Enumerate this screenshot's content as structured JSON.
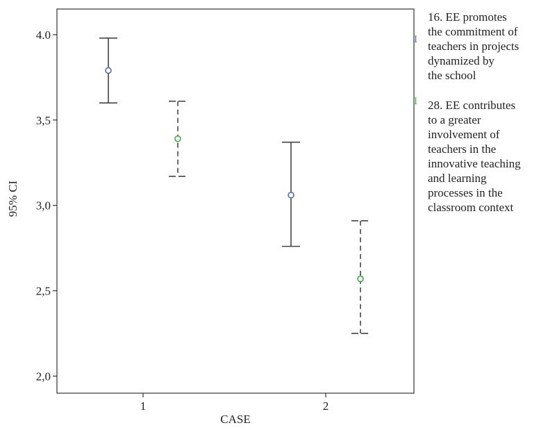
{
  "chart_data": {
    "type": "errorbar",
    "xlabel": "CASE",
    "ylabel": "95% CI",
    "categories": [
      "1",
      "2"
    ],
    "ylim": [
      1.9,
      4.15
    ],
    "yticks": [
      {
        "value": 2.0,
        "label": "2,0"
      },
      {
        "value": 2.5,
        "label": "2,5"
      },
      {
        "value": 3.0,
        "label": "3,0"
      },
      {
        "value": 3.5,
        "label": "3,5"
      },
      {
        "value": 4.0,
        "label": "4.0"
      }
    ],
    "series": [
      {
        "name": "16. EE promotes\nthe commitment of\nteachers in projects\ndynamized by\nthe school",
        "color": "#4a6fb5",
        "line_style": "solid",
        "points": [
          {
            "category": "1",
            "mean": 3.79,
            "lower": 3.6,
            "upper": 3.98
          },
          {
            "category": "2",
            "mean": 3.06,
            "lower": 2.76,
            "upper": 3.37
          }
        ]
      },
      {
        "name": " 28. EE contributes\nto a greater\ninvolvement of\nteachers in the\ninnovative teaching\nand learning\nprocesses in the\nclassroom context",
        "color": "#3fae49",
        "line_style": "dashed",
        "points": [
          {
            "category": "1",
            "mean": 3.39,
            "lower": 3.17,
            "upper": 3.61
          },
          {
            "category": "2",
            "mean": 2.57,
            "lower": 2.25,
            "upper": 2.91
          }
        ]
      }
    ],
    "legend": {
      "position": "right",
      "symbol": "I"
    }
  }
}
